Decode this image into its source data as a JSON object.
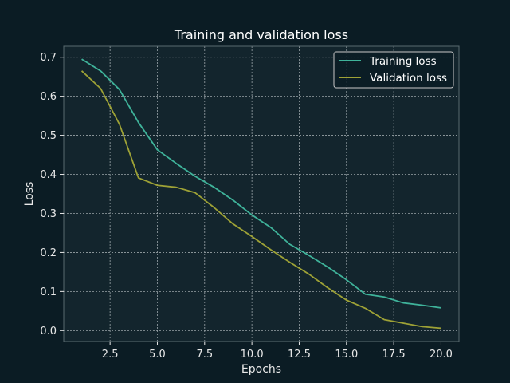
{
  "colors": {
    "background": "#0b1c24",
    "plot_background": "#13252d",
    "axis": "#5a6a70",
    "grid": "#9aa4a8",
    "text": "#e8e8e8",
    "training": "#3fb39a",
    "validation": "#9ea236"
  },
  "chart_data": {
    "type": "line",
    "title": "Training and validation loss",
    "xlabel": "Epochs",
    "ylabel": "Loss",
    "xlim": [
      0.05,
      20.95
    ],
    "ylim": [
      -0.028,
      0.728
    ],
    "xticks": [
      2.5,
      5.0,
      7.5,
      10.0,
      12.5,
      15.0,
      17.5,
      20.0
    ],
    "xtick_labels": [
      "2.5",
      "5.0",
      "7.5",
      "10.0",
      "12.5",
      "15.0",
      "17.5",
      "20.0"
    ],
    "yticks": [
      0.0,
      0.1,
      0.2,
      0.3,
      0.4,
      0.5,
      0.6,
      0.7
    ],
    "ytick_labels": [
      "0.0",
      "0.1",
      "0.2",
      "0.3",
      "0.4",
      "0.5",
      "0.6",
      "0.7"
    ],
    "grid": true,
    "legend_position": "top-right",
    "x": [
      1,
      2,
      3,
      4,
      5,
      6,
      7,
      8,
      9,
      10,
      11,
      12,
      13,
      14,
      15,
      16,
      17,
      18,
      19,
      20
    ],
    "series": [
      {
        "name": "Training loss",
        "color": "#3fb39a",
        "values": [
          0.695,
          0.665,
          0.617,
          0.533,
          0.463,
          0.428,
          0.395,
          0.367,
          0.334,
          0.296,
          0.264,
          0.221,
          0.193,
          0.163,
          0.13,
          0.093,
          0.086,
          0.071,
          0.065,
          0.058
        ]
      },
      {
        "name": "Validation loss",
        "color": "#9ea236",
        "values": [
          0.665,
          0.62,
          0.528,
          0.391,
          0.372,
          0.367,
          0.353,
          0.315,
          0.273,
          0.241,
          0.207,
          0.175,
          0.145,
          0.11,
          0.078,
          0.057,
          0.028,
          0.019,
          0.01,
          0.006
        ]
      }
    ]
  }
}
